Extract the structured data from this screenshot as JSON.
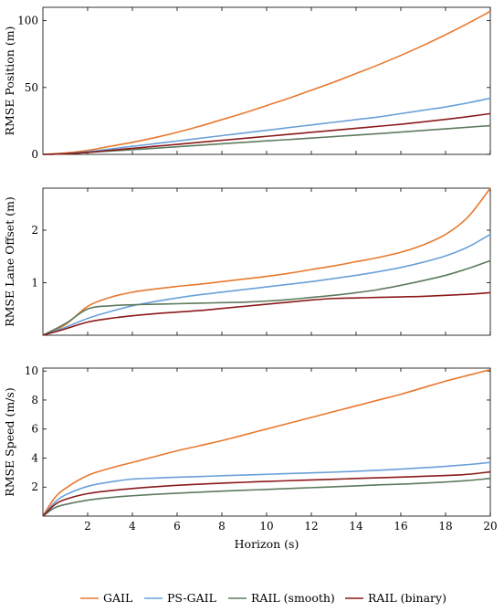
{
  "colors": {
    "GAIL": "#e8782e",
    "PS-GAIL": "#6aa0d8",
    "RAIL (smooth)": "#5d7a5d",
    "RAIL (binary)": "#8b1a1a"
  },
  "legend": [
    "GAIL",
    "PS-GAIL",
    "RAIL (smooth)",
    "RAIL (binary)"
  ],
  "chart_data": [
    {
      "type": "line",
      "ylabel": "RMSE Position (m)",
      "xlabel": "",
      "xlim": [
        0,
        20
      ],
      "ylim": [
        0,
        110
      ],
      "yticks": [
        0,
        50,
        100
      ],
      "xticks": [],
      "x": [
        0,
        1,
        2,
        3,
        4,
        5,
        6,
        7,
        8,
        9,
        10,
        11,
        12,
        13,
        14,
        15,
        16,
        17,
        18,
        19,
        20
      ],
      "series": [
        {
          "name": "GAIL",
          "values": [
            0,
            1,
            3,
            6,
            9,
            12.5,
            16.5,
            21,
            26,
            31,
            36.5,
            42,
            48,
            54,
            60.5,
            67,
            74,
            81.5,
            89.5,
            98,
            107
          ]
        },
        {
          "name": "PS-GAIL",
          "values": [
            0,
            0.5,
            2,
            4,
            6,
            8,
            10,
            12,
            14,
            16,
            18,
            20,
            22,
            24,
            26,
            28,
            30.5,
            33,
            35.5,
            38.5,
            42
          ]
        },
        {
          "name": "RAIL (smooth)",
          "values": [
            0,
            0.5,
            1.5,
            2.5,
            3.5,
            4.6,
            5.7,
            6.8,
            7.9,
            9,
            10.1,
            11.1,
            12.2,
            13.3,
            14.4,
            15.5,
            16.7,
            17.9,
            19.1,
            20.3,
            21.5
          ]
        },
        {
          "name": "RAIL (binary)",
          "values": [
            0,
            0.5,
            1.5,
            3,
            4.5,
            6,
            7.5,
            9,
            10.5,
            12,
            13.5,
            15,
            16.5,
            18,
            19.5,
            21,
            22.5,
            24.3,
            26.2,
            28.2,
            30.5
          ]
        }
      ]
    },
    {
      "type": "line",
      "ylabel": "RMSE Lane Offset (m)",
      "xlabel": "",
      "xlim": [
        0,
        20
      ],
      "ylim": [
        0,
        2.8
      ],
      "yticks": [
        1,
        2
      ],
      "xticks": [],
      "x": [
        0,
        1,
        2,
        3,
        4,
        5,
        6,
        7,
        8,
        9,
        10,
        11,
        12,
        13,
        14,
        15,
        16,
        17,
        18,
        19,
        20
      ],
      "series": [
        {
          "name": "GAIL",
          "values": [
            0,
            0.2,
            0.55,
            0.72,
            0.82,
            0.88,
            0.93,
            0.97,
            1.02,
            1.07,
            1.12,
            1.18,
            1.25,
            1.32,
            1.4,
            1.48,
            1.58,
            1.72,
            1.92,
            2.25,
            2.8
          ]
        },
        {
          "name": "PS-GAIL",
          "values": [
            0,
            0.15,
            0.32,
            0.45,
            0.56,
            0.64,
            0.71,
            0.77,
            0.82,
            0.87,
            0.92,
            0.97,
            1.02,
            1.08,
            1.14,
            1.21,
            1.29,
            1.39,
            1.51,
            1.68,
            1.92
          ]
        },
        {
          "name": "RAIL (smooth)",
          "values": [
            0,
            0.22,
            0.5,
            0.56,
            0.58,
            0.59,
            0.6,
            0.61,
            0.62,
            0.63,
            0.65,
            0.68,
            0.72,
            0.76,
            0.81,
            0.87,
            0.95,
            1.04,
            1.14,
            1.27,
            1.42
          ]
        },
        {
          "name": "RAIL (binary)",
          "values": [
            0,
            0.12,
            0.25,
            0.32,
            0.37,
            0.41,
            0.44,
            0.47,
            0.51,
            0.55,
            0.59,
            0.63,
            0.67,
            0.7,
            0.71,
            0.72,
            0.73,
            0.74,
            0.76,
            0.78,
            0.81
          ]
        }
      ]
    },
    {
      "type": "line",
      "ylabel": "RMSE Speed (m/s)",
      "xlabel": "Horizon (s)",
      "xlim": [
        0,
        20
      ],
      "ylim": [
        0,
        10.2
      ],
      "yticks": [
        2,
        4,
        6,
        8,
        10
      ],
      "xticks": [
        2,
        4,
        6,
        8,
        10,
        12,
        14,
        16,
        18,
        20
      ],
      "x": [
        0,
        0.5,
        1,
        2,
        3,
        4,
        5,
        6,
        7,
        8,
        9,
        10,
        11,
        12,
        13,
        14,
        15,
        16,
        17,
        18,
        19,
        20
      ],
      "series": [
        {
          "name": "GAIL",
          "values": [
            0,
            1.2,
            1.9,
            2.8,
            3.3,
            3.7,
            4.1,
            4.5,
            4.85,
            5.2,
            5.6,
            6.0,
            6.4,
            6.8,
            7.2,
            7.6,
            8.0,
            8.4,
            8.85,
            9.3,
            9.7,
            10.1
          ]
        },
        {
          "name": "PS-GAIL",
          "values": [
            0,
            0.9,
            1.45,
            2.05,
            2.35,
            2.55,
            2.62,
            2.68,
            2.73,
            2.78,
            2.83,
            2.88,
            2.93,
            2.98,
            3.03,
            3.09,
            3.16,
            3.24,
            3.33,
            3.43,
            3.55,
            3.7
          ]
        },
        {
          "name": "RAIL (smooth)",
          "values": [
            0,
            0.55,
            0.8,
            1.1,
            1.28,
            1.4,
            1.5,
            1.58,
            1.65,
            1.72,
            1.78,
            1.84,
            1.9,
            1.96,
            2.02,
            2.08,
            2.15,
            2.2,
            2.27,
            2.35,
            2.45,
            2.6
          ]
        },
        {
          "name": "RAIL (binary)",
          "values": [
            0,
            0.75,
            1.15,
            1.55,
            1.75,
            1.9,
            2.02,
            2.12,
            2.2,
            2.27,
            2.33,
            2.39,
            2.44,
            2.49,
            2.54,
            2.59,
            2.64,
            2.69,
            2.74,
            2.8,
            2.88,
            3.05
          ]
        }
      ]
    }
  ]
}
